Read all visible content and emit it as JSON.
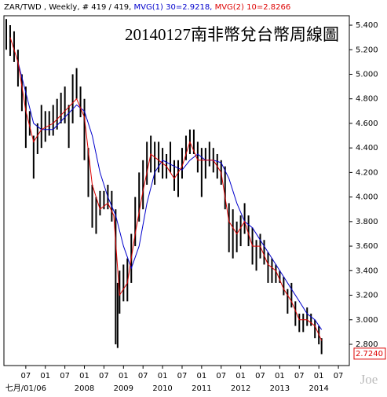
{
  "chart_data": {
    "type": "hilo",
    "title": "20140127南非幣兌台幣周線圖",
    "header": "ZAR/TWD , Weekly, # 419 / 419,",
    "watermark": "Joe",
    "bars": {
      "color": "#000000",
      "x": [
        2006.0,
        2006.1,
        2006.2,
        2006.3,
        2006.4,
        2006.5,
        2006.6,
        2006.7,
        2006.8,
        2006.9,
        2007.0,
        2007.1,
        2007.2,
        2007.3,
        2007.4,
        2007.5,
        2007.6,
        2007.7,
        2007.8,
        2007.9,
        2008.0,
        2008.1,
        2008.2,
        2008.3,
        2008.4,
        2008.5,
        2008.6,
        2008.7,
        2008.8,
        2008.85,
        2008.9,
        2009.0,
        2009.1,
        2009.2,
        2009.3,
        2009.4,
        2009.5,
        2009.6,
        2009.7,
        2009.8,
        2009.9,
        2010.0,
        2010.1,
        2010.2,
        2010.3,
        2010.4,
        2010.5,
        2010.6,
        2010.7,
        2010.8,
        2010.9,
        2011.0,
        2011.1,
        2011.2,
        2011.3,
        2011.4,
        2011.5,
        2011.6,
        2011.7,
        2011.8,
        2011.9,
        2012.0,
        2012.1,
        2012.2,
        2012.3,
        2012.4,
        2012.5,
        2012.6,
        2012.7,
        2012.8,
        2012.9,
        2013.0,
        2013.1,
        2013.2,
        2013.3,
        2013.4,
        2013.5,
        2013.6,
        2013.7,
        2013.8,
        2013.9,
        2014.0,
        2014.07
      ],
      "high": [
        5.45,
        5.4,
        5.35,
        5.2,
        5.0,
        4.9,
        4.7,
        4.5,
        4.6,
        4.75,
        4.7,
        4.7,
        4.75,
        4.8,
        4.85,
        4.9,
        4.75,
        5.0,
        5.05,
        4.9,
        4.8,
        4.4,
        4.1,
        4.0,
        4.05,
        4.05,
        4.1,
        4.05,
        3.9,
        3.3,
        3.4,
        3.45,
        3.5,
        3.7,
        4.0,
        4.2,
        4.3,
        4.45,
        4.5,
        4.45,
        4.45,
        4.4,
        4.35,
        4.45,
        4.3,
        4.3,
        4.4,
        4.5,
        4.55,
        4.55,
        4.45,
        4.4,
        4.4,
        4.45,
        4.4,
        4.35,
        4.3,
        4.25,
        3.95,
        3.9,
        3.8,
        3.85,
        3.95,
        3.85,
        3.75,
        3.65,
        3.7,
        3.65,
        3.55,
        3.5,
        3.45,
        3.4,
        3.35,
        3.25,
        3.3,
        3.15,
        3.05,
        3.05,
        3.1,
        3.05,
        3.0,
        2.95,
        2.85
      ],
      "low": [
        5.2,
        5.15,
        5.1,
        4.9,
        4.7,
        4.4,
        4.5,
        4.15,
        4.35,
        4.4,
        4.45,
        4.5,
        4.5,
        4.55,
        4.6,
        4.6,
        4.4,
        4.6,
        4.8,
        4.65,
        4.3,
        4.0,
        3.75,
        3.7,
        3.85,
        3.9,
        3.9,
        3.8,
        2.8,
        2.77,
        3.05,
        3.15,
        3.15,
        3.3,
        3.6,
        3.8,
        3.9,
        4.1,
        4.2,
        4.1,
        4.2,
        4.15,
        4.15,
        4.2,
        4.05,
        4.0,
        4.15,
        4.3,
        4.35,
        4.35,
        4.2,
        4.0,
        4.15,
        4.25,
        4.2,
        4.15,
        4.1,
        3.9,
        3.55,
        3.5,
        3.55,
        3.6,
        3.7,
        3.6,
        3.45,
        3.4,
        3.5,
        3.45,
        3.3,
        3.3,
        3.3,
        3.3,
        3.2,
        3.05,
        3.1,
        2.95,
        2.9,
        2.9,
        2.95,
        2.95,
        2.85,
        2.8,
        2.72
      ]
    },
    "series": [
      {
        "name": "MVG(1) 30=2.9218,",
        "color": "#0000cc",
        "x": [
          2006.3,
          2006.5,
          2006.7,
          2006.9,
          2007.2,
          2007.5,
          2007.8,
          2008.0,
          2008.2,
          2008.4,
          2008.6,
          2008.8,
          2009.0,
          2009.2,
          2009.4,
          2009.6,
          2009.8,
          2010.0,
          2010.3,
          2010.5,
          2010.7,
          2010.9,
          2011.1,
          2011.3,
          2011.5,
          2011.7,
          2011.9,
          2012.1,
          2012.3,
          2012.5,
          2012.7,
          2012.9,
          2013.1,
          2013.3,
          2013.5,
          2013.7,
          2013.9,
          2014.07
        ],
        "values": [
          5.1,
          4.85,
          4.6,
          4.55,
          4.55,
          4.65,
          4.75,
          4.7,
          4.5,
          4.2,
          4.0,
          3.85,
          3.6,
          3.42,
          3.6,
          3.95,
          4.2,
          4.3,
          4.25,
          4.22,
          4.3,
          4.35,
          4.3,
          4.3,
          4.28,
          4.15,
          3.95,
          3.8,
          3.75,
          3.65,
          3.55,
          3.45,
          3.35,
          3.25,
          3.15,
          3.05,
          3.0,
          2.92
        ]
      },
      {
        "name": "MVG(2) 10=2.8266",
        "color": "#dd0000",
        "x": [
          2006.1,
          2006.3,
          2006.5,
          2006.7,
          2006.9,
          2007.2,
          2007.5,
          2007.8,
          2008.0,
          2008.2,
          2008.4,
          2008.6,
          2008.75,
          2008.9,
          2009.1,
          2009.3,
          2009.5,
          2009.7,
          2009.9,
          2010.1,
          2010.3,
          2010.5,
          2010.7,
          2010.9,
          2011.1,
          2011.3,
          2011.5,
          2011.7,
          2011.9,
          2012.1,
          2012.3,
          2012.5,
          2012.7,
          2012.9,
          2013.1,
          2013.3,
          2013.5,
          2013.7,
          2013.9,
          2014.07
        ],
        "values": [
          5.3,
          5.1,
          4.7,
          4.45,
          4.55,
          4.6,
          4.7,
          4.8,
          4.65,
          4.1,
          3.9,
          3.95,
          3.85,
          3.2,
          3.3,
          3.7,
          4.05,
          4.35,
          4.3,
          4.25,
          4.15,
          4.25,
          4.45,
          4.3,
          4.3,
          4.3,
          4.2,
          3.8,
          3.7,
          3.8,
          3.6,
          3.6,
          3.45,
          3.4,
          3.25,
          3.15,
          3.0,
          3.0,
          2.95,
          2.83
        ]
      }
    ],
    "last_value": {
      "value": 2.724,
      "label": "2.7240"
    },
    "xlim": [
      2005.94,
      2014.78
    ],
    "ylim": [
      2.627,
      5.477
    ],
    "xticks": [
      {
        "value": 2006.5,
        "label": "07"
      },
      {
        "value": 2007,
        "label": "01"
      },
      {
        "value": 2007.5,
        "label": "07"
      },
      {
        "value": 2008,
        "label": "01"
      },
      {
        "value": 2008.5,
        "label": "07"
      },
      {
        "value": 2009,
        "label": "01"
      },
      {
        "value": 2009.5,
        "label": "07"
      },
      {
        "value": 2010,
        "label": "01"
      },
      {
        "value": 2010.5,
        "label": "07"
      },
      {
        "value": 2011,
        "label": "01"
      },
      {
        "value": 2011.5,
        "label": "07"
      },
      {
        "value": 2012,
        "label": "01"
      },
      {
        "value": 2012.5,
        "label": "07"
      },
      {
        "value": 2013,
        "label": "01"
      },
      {
        "value": 2013.5,
        "label": "07"
      },
      {
        "value": 2014,
        "label": "01"
      },
      {
        "value": 2014.5,
        "label": "07"
      }
    ],
    "year_ticks": [
      {
        "value": 2006.5,
        "label": "七月/01/06"
      },
      {
        "value": 2008,
        "label": "2008"
      },
      {
        "value": 2009,
        "label": "2009"
      },
      {
        "value": 2010,
        "label": "2010"
      },
      {
        "value": 2011,
        "label": "2011"
      },
      {
        "value": 2012,
        "label": "2012"
      },
      {
        "value": 2013,
        "label": "2013"
      },
      {
        "value": 2014,
        "label": "2014"
      }
    ],
    "yticks": [
      {
        "value": 2.8,
        "label": "2.800"
      },
      {
        "value": 3.0,
        "label": "3.000"
      },
      {
        "value": 3.2,
        "label": "3.200"
      },
      {
        "value": 3.4,
        "label": "3.400"
      },
      {
        "value": 3.6,
        "label": "3.600"
      },
      {
        "value": 3.8,
        "label": "3.800"
      },
      {
        "value": 4.0,
        "label": "4.000"
      },
      {
        "value": 4.2,
        "label": "4.200"
      },
      {
        "value": 4.4,
        "label": "4.400"
      },
      {
        "value": 4.6,
        "label": "4.600"
      },
      {
        "value": 4.8,
        "label": "4.800"
      },
      {
        "value": 5.0,
        "label": "5.000"
      },
      {
        "value": 5.2,
        "label": "5.200"
      },
      {
        "value": 5.4,
        "label": "5.400"
      }
    ]
  }
}
